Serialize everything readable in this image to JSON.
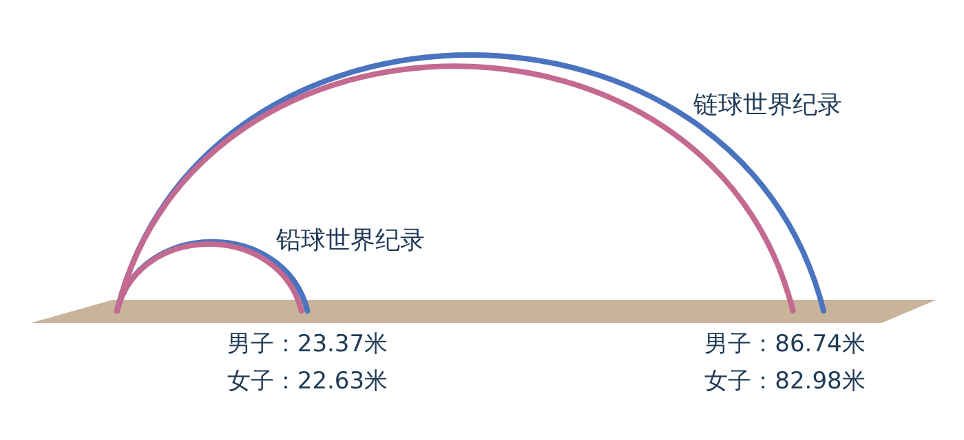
{
  "chart_data": {
    "type": "other",
    "categories": [
      "铅球世界纪录",
      "链球世界纪录"
    ],
    "series": [
      {
        "color": "#4a74c0",
        "values": [
          23.37,
          86.74
        ],
        "value_labels": [
          "男子：23.37米",
          "男子：86.74米"
        ]
      },
      {
        "color": "#c46a90",
        "values": [
          22.63,
          82.98
        ],
        "value_labels": [
          "女子：22.63米",
          "女子：82.98米"
        ]
      }
    ]
  }
}
